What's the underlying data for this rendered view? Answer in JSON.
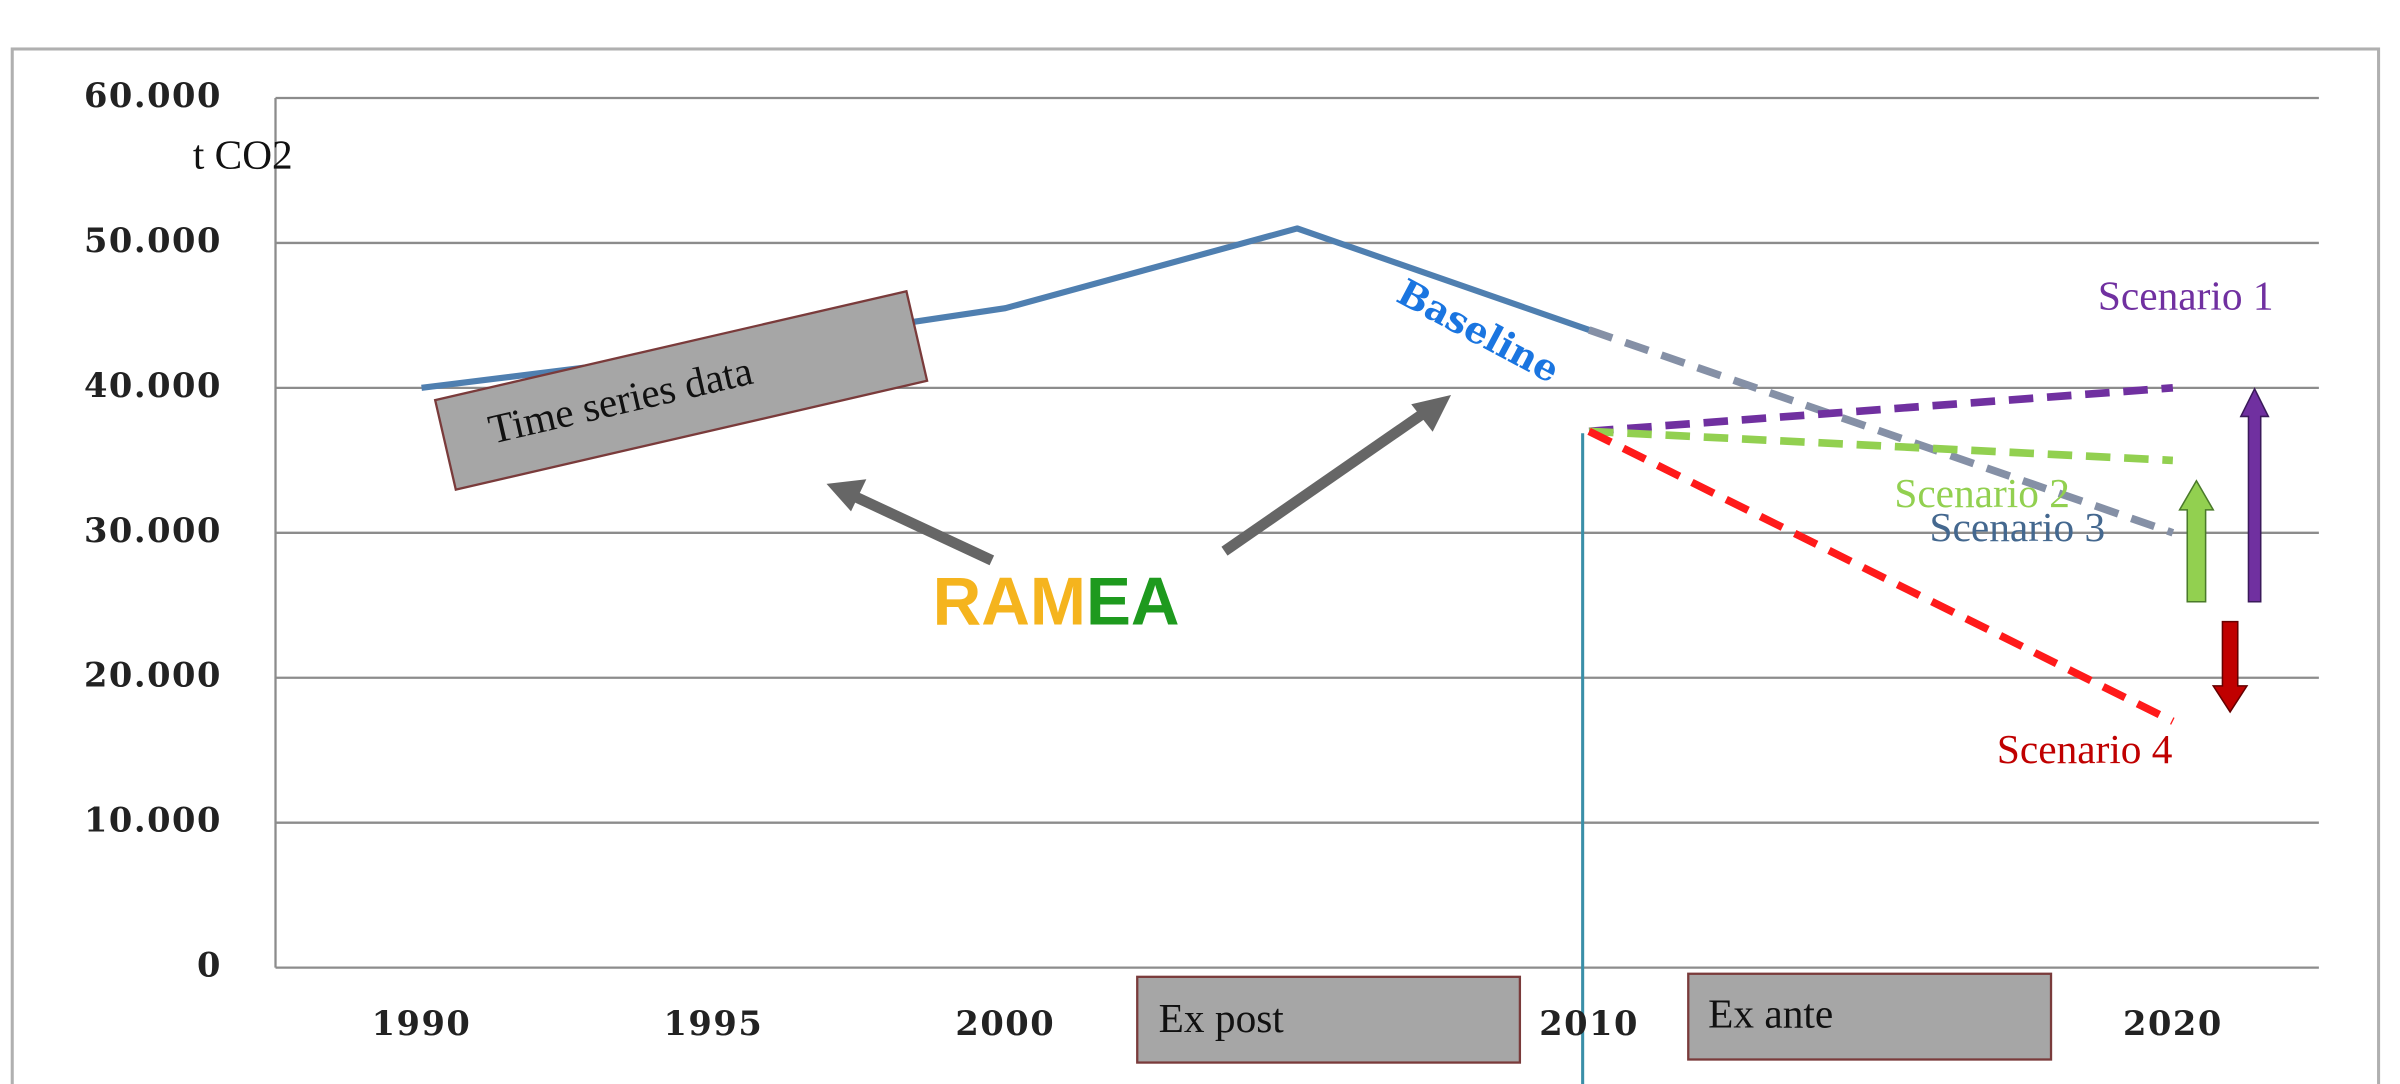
{
  "chart_data": {
    "type": "line",
    "y_label": "t CO2",
    "xlim": [
      1987.5,
      2022.5
    ],
    "xticks": [
      1990,
      1995,
      2000,
      2010,
      2020
    ],
    "ylim": [
      0,
      60000
    ],
    "yticks": [
      {
        "value": 0,
        "label": "0"
      },
      {
        "value": 10000,
        "label": "10.000"
      },
      {
        "value": 20000,
        "label": "20.000"
      },
      {
        "value": 30000,
        "label": "30.000"
      },
      {
        "value": 40000,
        "label": "40.000"
      },
      {
        "value": 50000,
        "label": "50.000"
      },
      {
        "value": 60000,
        "label": "60.000"
      }
    ],
    "grid": true,
    "series": [
      {
        "name": "Baseline",
        "color": "#4f7fb0",
        "dashed": false,
        "x": [
          1990,
          1995,
          2000,
          2005,
          2010
        ],
        "values": [
          40000,
          42500,
          45500,
          51000,
          44000
        ]
      },
      {
        "name": "Scenario 3",
        "color": "#8590a6",
        "dashed": true,
        "x": [
          2010,
          2020
        ],
        "values": [
          44000,
          30000
        ]
      },
      {
        "name": "Scenario 1",
        "color": "#7030a0",
        "dashed": true,
        "x": [
          2010,
          2020
        ],
        "values": [
          37000,
          40000
        ]
      },
      {
        "name": "Scenario 2",
        "color": "#92d050",
        "dashed": true,
        "x": [
          2010,
          2020
        ],
        "values": [
          37000,
          35000
        ]
      },
      {
        "name": "Scenario 4",
        "color": "#ff1a1a",
        "dashed": true,
        "x": [
          2010,
          2020
        ],
        "values": [
          37000,
          17000
        ]
      }
    ],
    "annotations": {
      "time_series": "Time series data",
      "ramea": [
        "RAM",
        "EA"
      ],
      "ex_post": "Ex post",
      "ex_ante": "Ex ante"
    }
  }
}
